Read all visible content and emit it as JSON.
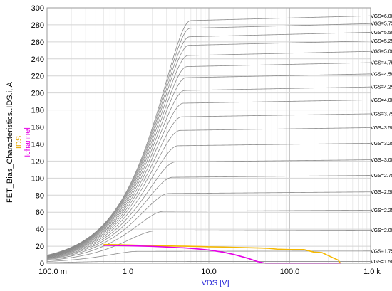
{
  "chart_data": {
    "type": "line",
    "x_scale": "log",
    "xlim": [
      0.1,
      1000
    ],
    "ylim": [
      0,
      300
    ],
    "x_ticks": [
      0.1,
      1,
      10,
      100,
      1000
    ],
    "x_tick_labels": [
      "100.0 m",
      "1.0",
      "10.0",
      "100.0",
      "1.0 k"
    ],
    "y_ticks": [
      0,
      20,
      40,
      60,
      80,
      100,
      120,
      140,
      160,
      180,
      200,
      220,
      240,
      260,
      280,
      300
    ],
    "y_tick_labels": [
      "0",
      "20",
      "40",
      "60",
      "80",
      "100",
      "120",
      "140",
      "160",
      "180",
      "200",
      "220",
      "240",
      "260",
      "280",
      "300"
    ],
    "xlabel": "VDS [V]",
    "ylabel_lines": [
      {
        "text": "FET_Bias_Characteristics..IDS.i, A",
        "color": "#000000"
      },
      {
        "text": "IDS",
        "color": "#e6a800"
      },
      {
        "text": "Ichannel",
        "color": "#e600e6"
      }
    ],
    "grid": true,
    "family": {
      "color": "#8a8a8a",
      "k": 8,
      "sat_end_slope": 2.2,
      "curves": [
        {
          "label": "VGS=1.50 V",
          "sat": 2
        },
        {
          "label": "VGS=1.75 V",
          "sat": 14
        },
        {
          "label": "VGS=2.00 V",
          "sat": 38
        },
        {
          "label": "VGS=2.25 V",
          "sat": 61
        },
        {
          "label": "VGS=2.50 V",
          "sat": 82
        },
        {
          "label": "VGS=2.75 V",
          "sat": 101
        },
        {
          "label": "VGS=3.00 V",
          "sat": 119
        },
        {
          "label": "VGS=3.25 V",
          "sat": 138
        },
        {
          "label": "VGS=3.50 V",
          "sat": 156
        },
        {
          "label": "VGS=3.75 V",
          "sat": 172
        },
        {
          "label": "VGS=4.00 V",
          "sat": 188
        },
        {
          "label": "VGS=4.25 V",
          "sat": 203
        },
        {
          "label": "VGS=4.50 V",
          "sat": 218
        },
        {
          "label": "VGS=4.75 V",
          "sat": 231
        },
        {
          "label": "VGS=5.00 V",
          "sat": 244
        },
        {
          "label": "VGS=5.25 V",
          "sat": 256
        },
        {
          "label": "VGS=5.50 V",
          "sat": 266
        },
        {
          "label": "VGS=5.75 V",
          "sat": 276
        },
        {
          "label": "VGS=6.00 V",
          "sat": 285
        }
      ]
    },
    "series": [
      {
        "name": "IDS",
        "color": "#f5b800",
        "x": [
          0.5,
          0.7,
          1,
          1.5,
          2,
          3,
          5,
          8,
          10,
          15,
          20,
          30,
          45,
          55,
          70,
          100,
          150,
          200,
          250,
          350,
          400,
          420
        ],
        "y": [
          22,
          21.8,
          21.5,
          21,
          20.8,
          20.3,
          20,
          19.6,
          19.3,
          19,
          18.7,
          18.2,
          17.8,
          17.5,
          16.5,
          16,
          16,
          13,
          12.5,
          6,
          3.5,
          0.5
        ]
      },
      {
        "name": "Ichannel",
        "color": "#e600e6",
        "x": [
          0.5,
          1,
          2,
          3,
          5,
          7,
          10,
          15,
          20,
          30,
          40,
          50,
          60,
          100,
          200,
          300,
          430
        ],
        "y": [
          21,
          20.5,
          19.8,
          19,
          18,
          17,
          15.5,
          13,
          10.5,
          6,
          2,
          0,
          0,
          0,
          0,
          0,
          0
        ]
      }
    ]
  }
}
